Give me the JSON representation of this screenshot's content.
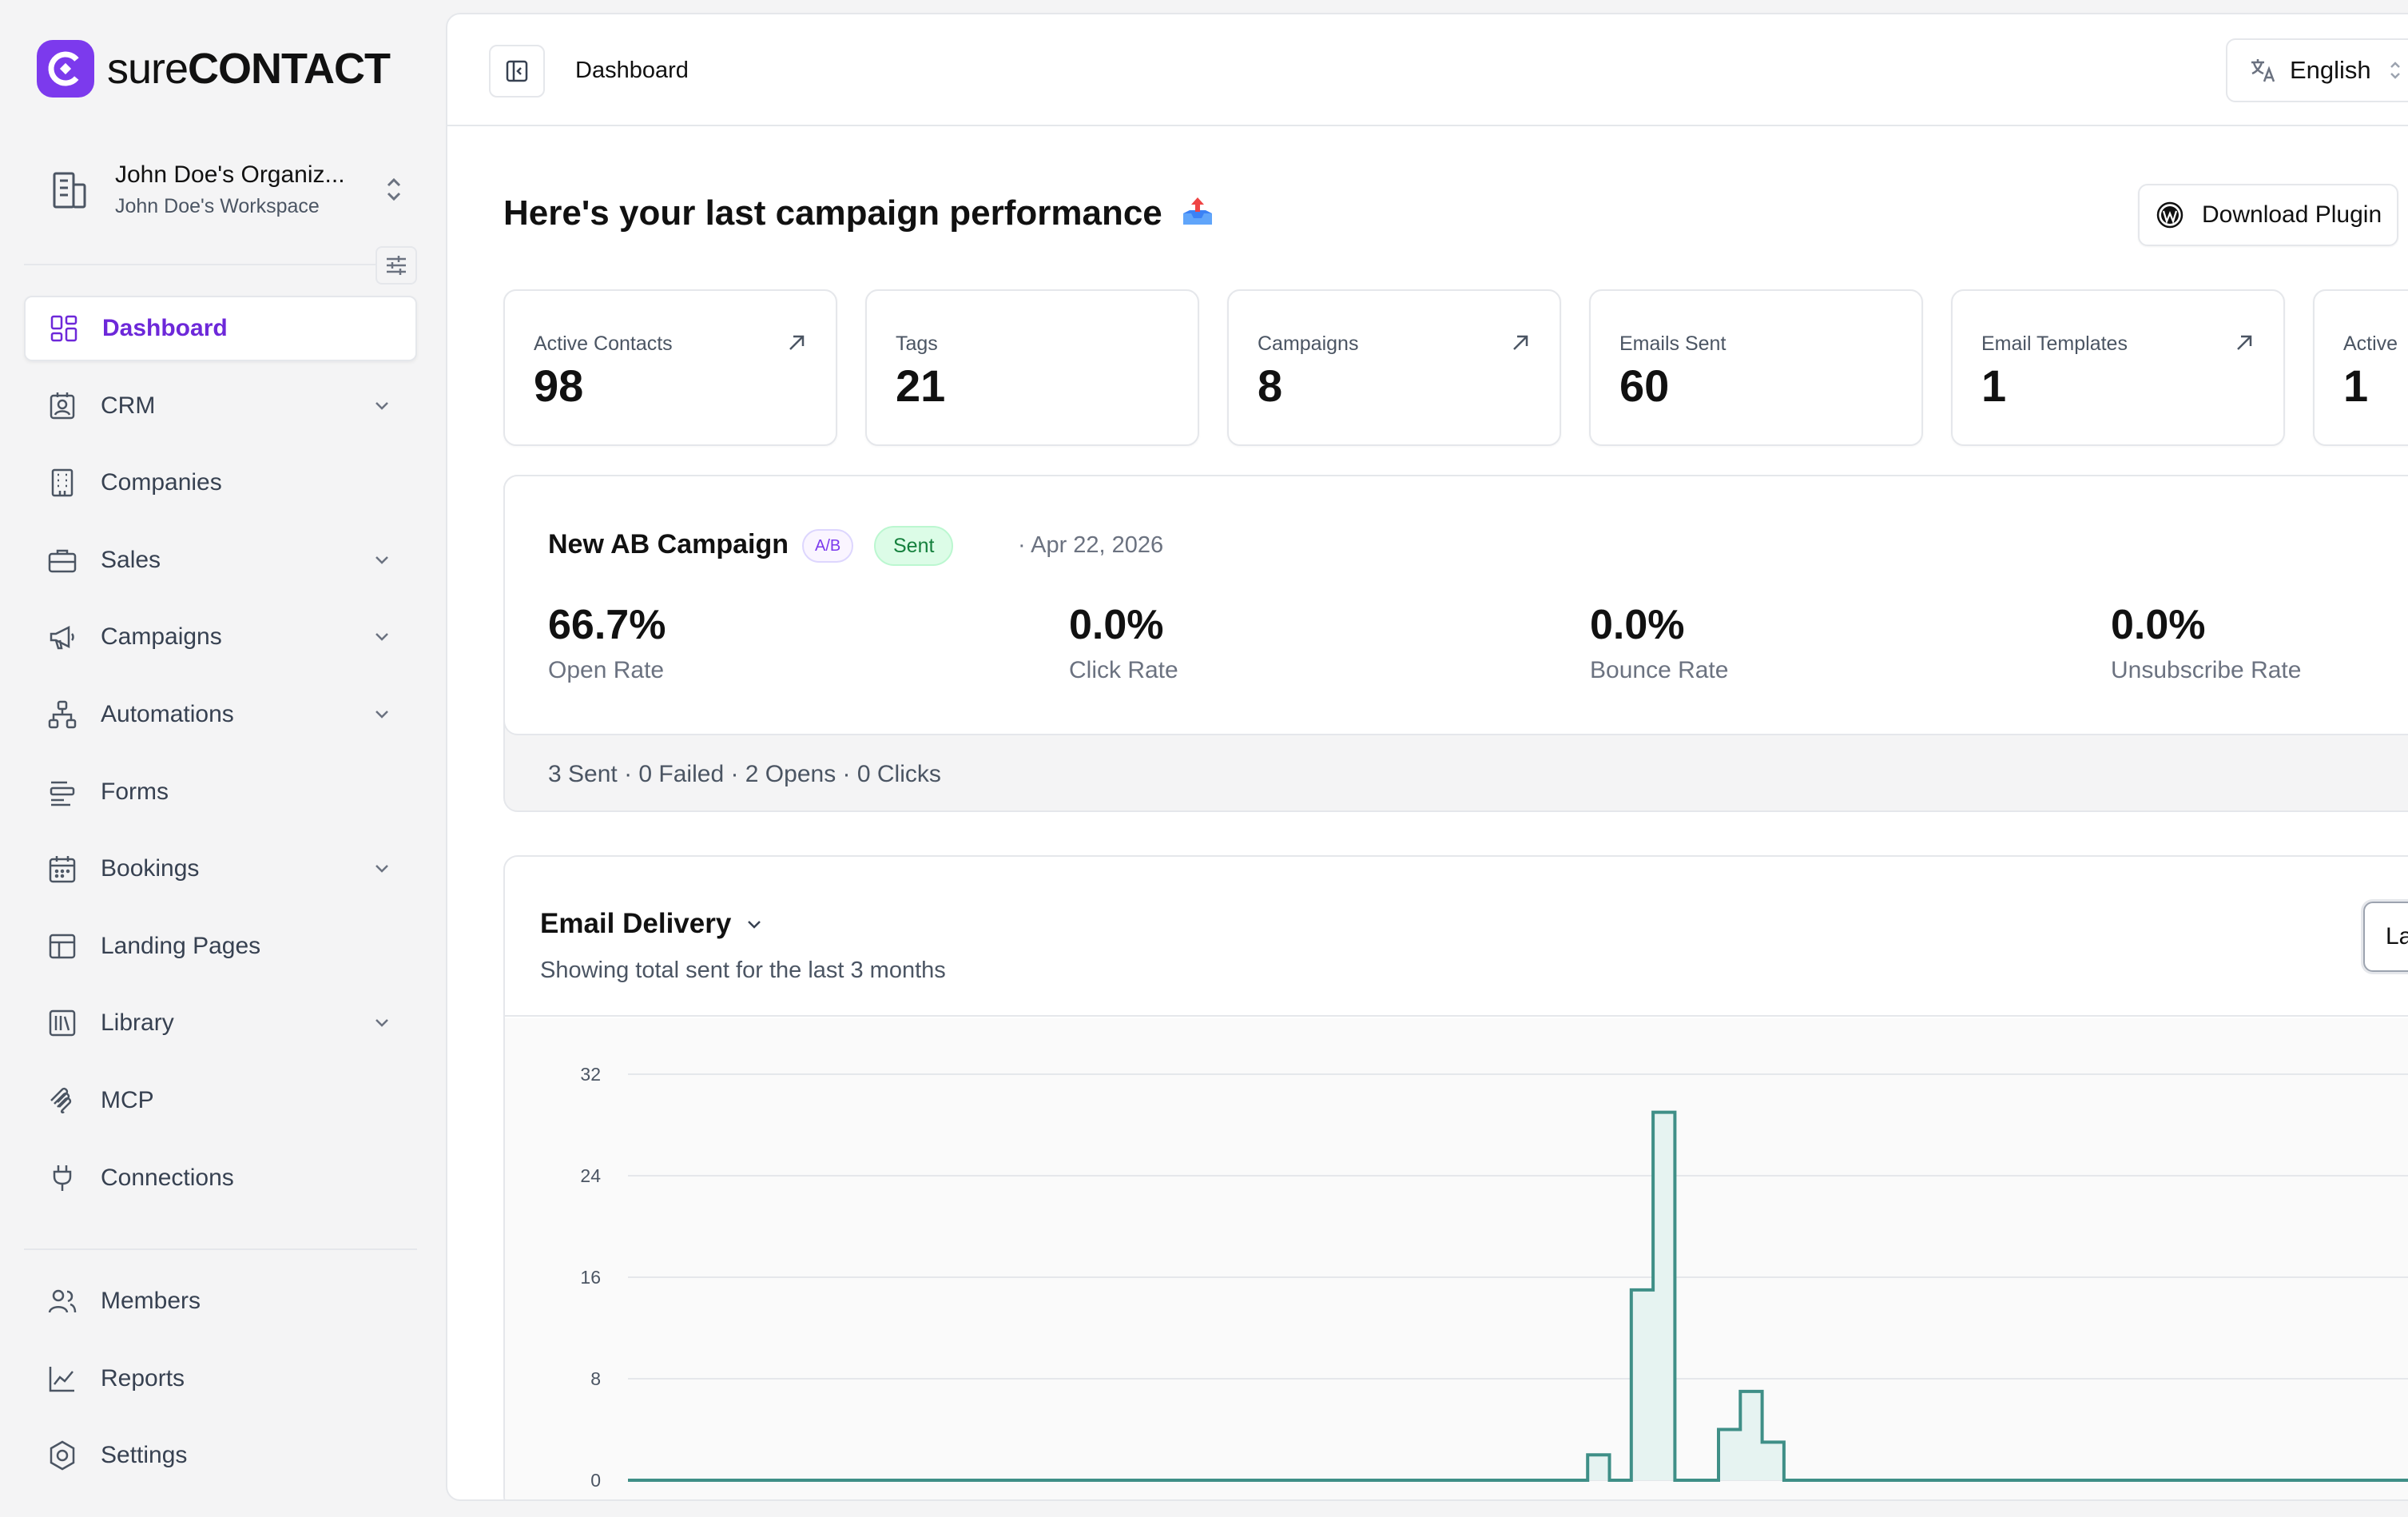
{
  "brand": {
    "name_light": "sure",
    "name_bold": "CONTACT",
    "accent": "#7c3aed"
  },
  "org": {
    "name": "John Doe's Organiz...",
    "workspace": "John Doe's Workspace"
  },
  "nav": [
    {
      "label": "Dashboard",
      "icon": "dashboard-icon",
      "active": true,
      "chevron": false
    },
    {
      "label": "CRM",
      "icon": "contact-card-icon",
      "chevron": true
    },
    {
      "label": "Companies",
      "icon": "building-icon",
      "chevron": false
    },
    {
      "label": "Sales",
      "icon": "briefcase-icon",
      "chevron": true
    },
    {
      "label": "Campaigns",
      "icon": "megaphone-icon",
      "chevron": true
    },
    {
      "label": "Automations",
      "icon": "workflow-icon",
      "chevron": true
    },
    {
      "label": "Forms",
      "icon": "form-icon",
      "chevron": false
    },
    {
      "label": "Bookings",
      "icon": "calendar-icon",
      "chevron": true
    },
    {
      "label": "Landing Pages",
      "icon": "layout-icon",
      "chevron": false
    },
    {
      "label": "Library",
      "icon": "library-icon",
      "chevron": true
    },
    {
      "label": "MCP",
      "icon": "mcp-icon",
      "chevron": false
    },
    {
      "label": "Connections",
      "icon": "plug-icon",
      "chevron": false
    }
  ],
  "nav_bottom": [
    {
      "label": "Members",
      "icon": "users-icon"
    },
    {
      "label": "Reports",
      "icon": "line-chart-icon"
    },
    {
      "label": "Settings",
      "icon": "gear-icon"
    }
  ],
  "topbar": {
    "breadcrumb": "Dashboard",
    "language": "English"
  },
  "headline": "Here's your last campaign performance",
  "download_label": "Download Plugin",
  "stats": [
    {
      "label": "Active Contacts",
      "value": "98",
      "link": true
    },
    {
      "label": "Tags",
      "value": "21",
      "link": false
    },
    {
      "label": "Campaigns",
      "value": "8",
      "link": true
    },
    {
      "label": "Emails Sent",
      "value": "60",
      "link": false
    },
    {
      "label": "Email Templates",
      "value": "1",
      "link": true
    },
    {
      "label": "Active",
      "value": "1",
      "link": false
    }
  ],
  "campaign": {
    "name": "New AB Campaign",
    "ab_badge": "A/B",
    "status": "Sent",
    "date": "· Apr 22, 2026",
    "metrics": [
      {
        "value": "66.7%",
        "label": "Open Rate"
      },
      {
        "value": "0.0%",
        "label": "Click Rate"
      },
      {
        "value": "0.0%",
        "label": "Bounce Rate"
      },
      {
        "value": "0.0%",
        "label": "Unsubscribe Rate"
      }
    ],
    "summary": "3 Sent · 0 Failed · 2 Opens · 0 Clicks"
  },
  "delivery": {
    "title": "Email Delivery",
    "subtitle": "Showing total sent for the last 3 months",
    "range_label": "La"
  },
  "chart_data": {
    "type": "area",
    "y_ticks": [
      "32",
      "24",
      "16",
      "8",
      "0"
    ],
    "ylim": [
      0,
      32
    ],
    "series": [
      {
        "values": [
          0,
          0,
          0,
          0,
          0,
          0,
          0,
          0,
          0,
          0,
          0,
          0,
          0,
          0,
          0,
          0,
          0,
          0,
          0,
          0,
          0,
          0,
          0,
          0,
          0,
          0,
          0,
          0,
          0,
          0,
          0,
          0,
          0,
          0,
          0,
          0,
          0,
          0,
          0,
          0,
          0,
          0,
          0,
          0,
          2,
          0,
          15,
          29,
          0,
          0,
          4,
          7,
          3,
          0,
          0,
          0,
          0,
          0,
          0,
          0,
          0,
          0,
          0,
          0,
          0,
          0,
          0,
          0,
          0,
          0,
          0,
          0,
          0,
          0,
          0,
          0,
          0,
          0,
          0,
          0,
          0,
          0,
          0,
          0,
          0,
          0,
          0,
          0,
          0,
          0,
          0,
          0,
          0,
          0,
          0,
          0,
          0,
          0,
          0,
          0,
          0,
          0,
          0,
          0,
          0,
          0,
          0,
          0,
          0,
          0,
          0,
          0,
          0,
          0,
          0,
          0,
          0,
          0,
          0,
          0,
          0,
          0,
          0,
          0,
          0,
          0,
          0,
          0,
          0,
          0,
          0,
          0,
          0,
          0,
          0,
          0,
          0,
          0,
          0,
          0,
          0,
          0,
          0,
          0,
          0,
          0,
          0,
          0,
          0,
          0,
          0,
          0,
          0,
          0,
          0,
          0,
          0,
          0,
          0,
          0,
          0,
          0,
          0,
          0,
          0,
          0,
          0,
          0,
          0,
          0,
          0,
          0,
          0,
          0,
          0,
          0,
          0,
          0,
          0,
          0,
          0,
          0
        ]
      }
    ],
    "line_color": "#3f8f87",
    "fill_color": "#e6f3f1",
    "grid": true
  }
}
